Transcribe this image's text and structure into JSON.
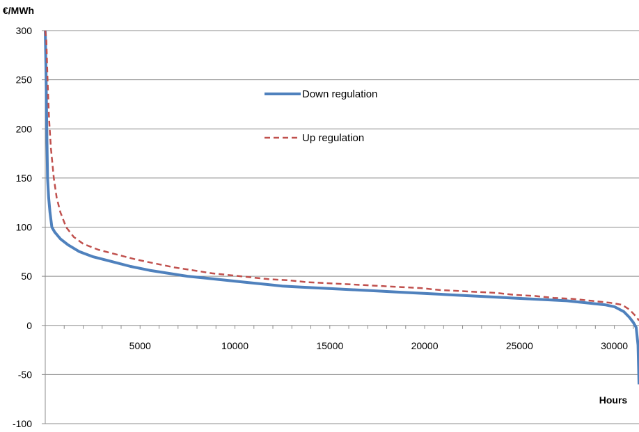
{
  "chart_data": {
    "type": "line",
    "title": "",
    "ylabel": "€/MWh",
    "xlabel": "Hours",
    "xlim": [
      0,
      31300
    ],
    "ylim": [
      -100,
      300
    ],
    "y_ticks": [
      -100,
      -50,
      0,
      50,
      100,
      150,
      200,
      250,
      300
    ],
    "x_ticks": [
      5000,
      10000,
      15000,
      20000,
      25000,
      30000
    ],
    "x_minor_step": 1000,
    "grid": {
      "horizontal": true,
      "vertical": false
    },
    "legend": {
      "placement": "top-center"
    },
    "series": [
      {
        "name": "Down regulation",
        "color": "#4F81BD",
        "style": "solid",
        "points": [
          [
            0,
            300
          ],
          [
            40,
            260
          ],
          [
            80,
            200
          ],
          [
            120,
            150
          ],
          [
            180,
            130
          ],
          [
            250,
            115
          ],
          [
            350,
            100
          ],
          [
            500,
            95
          ],
          [
            800,
            88
          ],
          [
            1200,
            82
          ],
          [
            1800,
            75
          ],
          [
            2500,
            70
          ],
          [
            3500,
            65
          ],
          [
            4500,
            60
          ],
          [
            5500,
            56
          ],
          [
            6500,
            53
          ],
          [
            7500,
            50
          ],
          [
            8500,
            48
          ],
          [
            9500,
            46
          ],
          [
            10500,
            44
          ],
          [
            11500,
            42
          ],
          [
            12500,
            40
          ],
          [
            13500,
            39
          ],
          [
            14500,
            38
          ],
          [
            15500,
            37
          ],
          [
            16500,
            36
          ],
          [
            17500,
            35
          ],
          [
            18500,
            34
          ],
          [
            19500,
            33
          ],
          [
            20500,
            32
          ],
          [
            21500,
            31
          ],
          [
            22500,
            30
          ],
          [
            23500,
            29
          ],
          [
            24500,
            28
          ],
          [
            25500,
            27
          ],
          [
            26500,
            26
          ],
          [
            27500,
            25
          ],
          [
            28500,
            23
          ],
          [
            29500,
            21
          ],
          [
            30000,
            19
          ],
          [
            30500,
            14
          ],
          [
            30800,
            8
          ],
          [
            31000,
            3
          ],
          [
            31150,
            -2
          ],
          [
            31250,
            -20
          ],
          [
            31300,
            -60
          ]
        ]
      },
      {
        "name": "Up regulation",
        "color": "#C0504D",
        "style": "dashed",
        "points": [
          [
            0,
            300
          ],
          [
            60,
            290
          ],
          [
            120,
            250
          ],
          [
            200,
            210
          ],
          [
            300,
            180
          ],
          [
            450,
            150
          ],
          [
            600,
            130
          ],
          [
            800,
            115
          ],
          [
            1100,
            100
          ],
          [
            1500,
            90
          ],
          [
            2000,
            83
          ],
          [
            2800,
            77
          ],
          [
            3800,
            72
          ],
          [
            4800,
            67
          ],
          [
            5800,
            63
          ],
          [
            6800,
            59
          ],
          [
            7800,
            56
          ],
          [
            8800,
            53
          ],
          [
            9800,
            51
          ],
          [
            10800,
            49
          ],
          [
            11800,
            47
          ],
          [
            12800,
            46
          ],
          [
            13800,
            44
          ],
          [
            14800,
            43
          ],
          [
            15800,
            42
          ],
          [
            16800,
            41
          ],
          [
            17800,
            40
          ],
          [
            18800,
            39
          ],
          [
            19800,
            38
          ],
          [
            20800,
            36
          ],
          [
            21800,
            35
          ],
          [
            22800,
            34
          ],
          [
            23800,
            33
          ],
          [
            24800,
            31
          ],
          [
            25800,
            30
          ],
          [
            26800,
            28
          ],
          [
            27800,
            27
          ],
          [
            28800,
            25
          ],
          [
            29800,
            23
          ],
          [
            30400,
            21
          ],
          [
            30800,
            16
          ],
          [
            31100,
            10
          ],
          [
            31300,
            5
          ]
        ]
      }
    ]
  }
}
